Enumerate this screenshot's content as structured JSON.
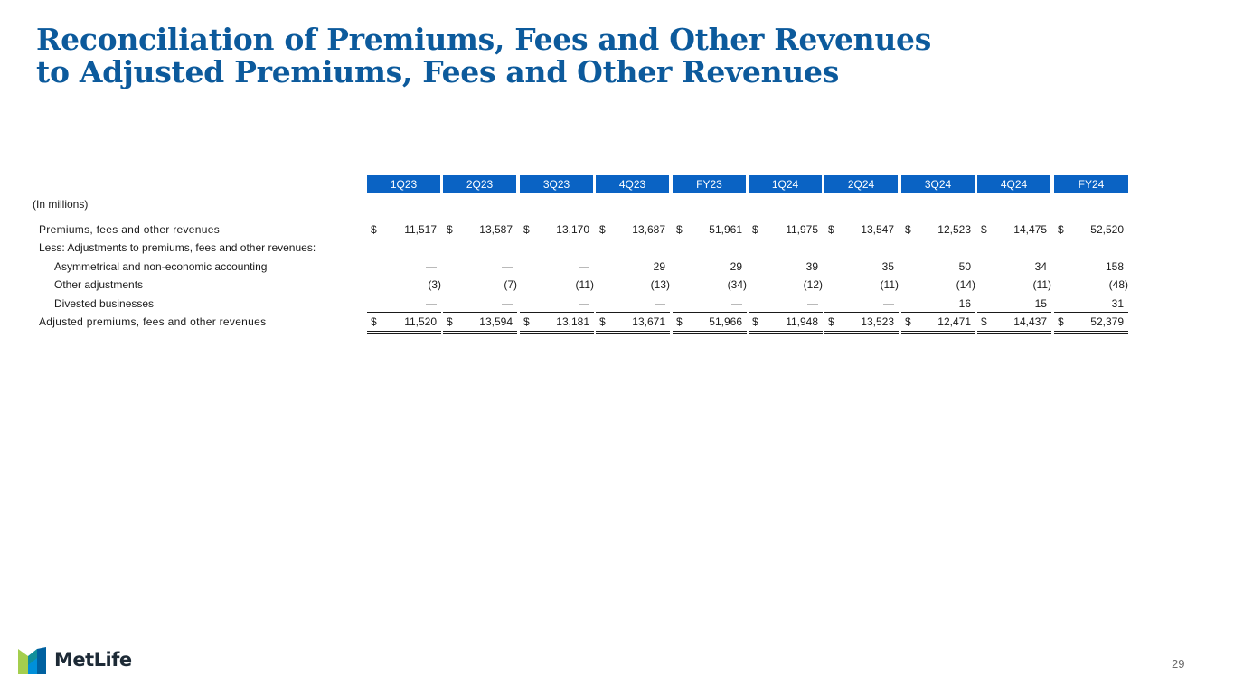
{
  "title": {
    "line1": "Reconciliation of Premiums, Fees and Other Revenues",
    "line2": "to Adjusted Premiums, Fees and Other Revenues"
  },
  "table": {
    "units": "(In millions)",
    "columns": [
      "1Q23",
      "2Q23",
      "3Q23",
      "4Q23",
      "FY23",
      "1Q24",
      "2Q24",
      "3Q24",
      "4Q24",
      "FY24"
    ],
    "rows": [
      {
        "label": "Premiums, fees and other revenues",
        "dollar": true,
        "values": [
          "11,517",
          "13,587",
          "13,170",
          "13,687",
          "51,961",
          "11,975",
          "13,547",
          "12,523",
          "14,475",
          "52,520"
        ]
      },
      {
        "label": "Less: Adjustments to premiums, fees and other revenues:",
        "dollar": false,
        "values": []
      },
      {
        "label": "Asymmetrical and non-economic accounting",
        "dollar": false,
        "values": [
          "—",
          "—",
          "—",
          "29",
          "29",
          "39",
          "35",
          "50",
          "34",
          "158"
        ]
      },
      {
        "label": "Other adjustments",
        "dollar": false,
        "values": [
          "(3)",
          "(7)",
          "(11)",
          "(13)",
          "(34)",
          "(12)",
          "(11)",
          "(14)",
          "(11)",
          "(48)"
        ]
      },
      {
        "label": "Divested businesses",
        "dollar": false,
        "values": [
          "—",
          "—",
          "—",
          "—",
          "—",
          "—",
          "—",
          "16",
          "15",
          "31"
        ]
      },
      {
        "label": "Adjusted premiums, fees and other revenues",
        "dollar": true,
        "values": [
          "11,520",
          "13,594",
          "13,181",
          "13,671",
          "51,966",
          "11,948",
          "13,523",
          "12,471",
          "14,437",
          "52,379"
        ]
      }
    ]
  },
  "footer": {
    "logo_text": "MetLife",
    "page_number": "29"
  },
  "colors": {
    "title": "#0c5a9c",
    "header_fill": "#0a63c4",
    "logo_blue": "#0090da",
    "logo_green": "#a4ce4e",
    "logo_dark_blue": "#0061a0"
  }
}
